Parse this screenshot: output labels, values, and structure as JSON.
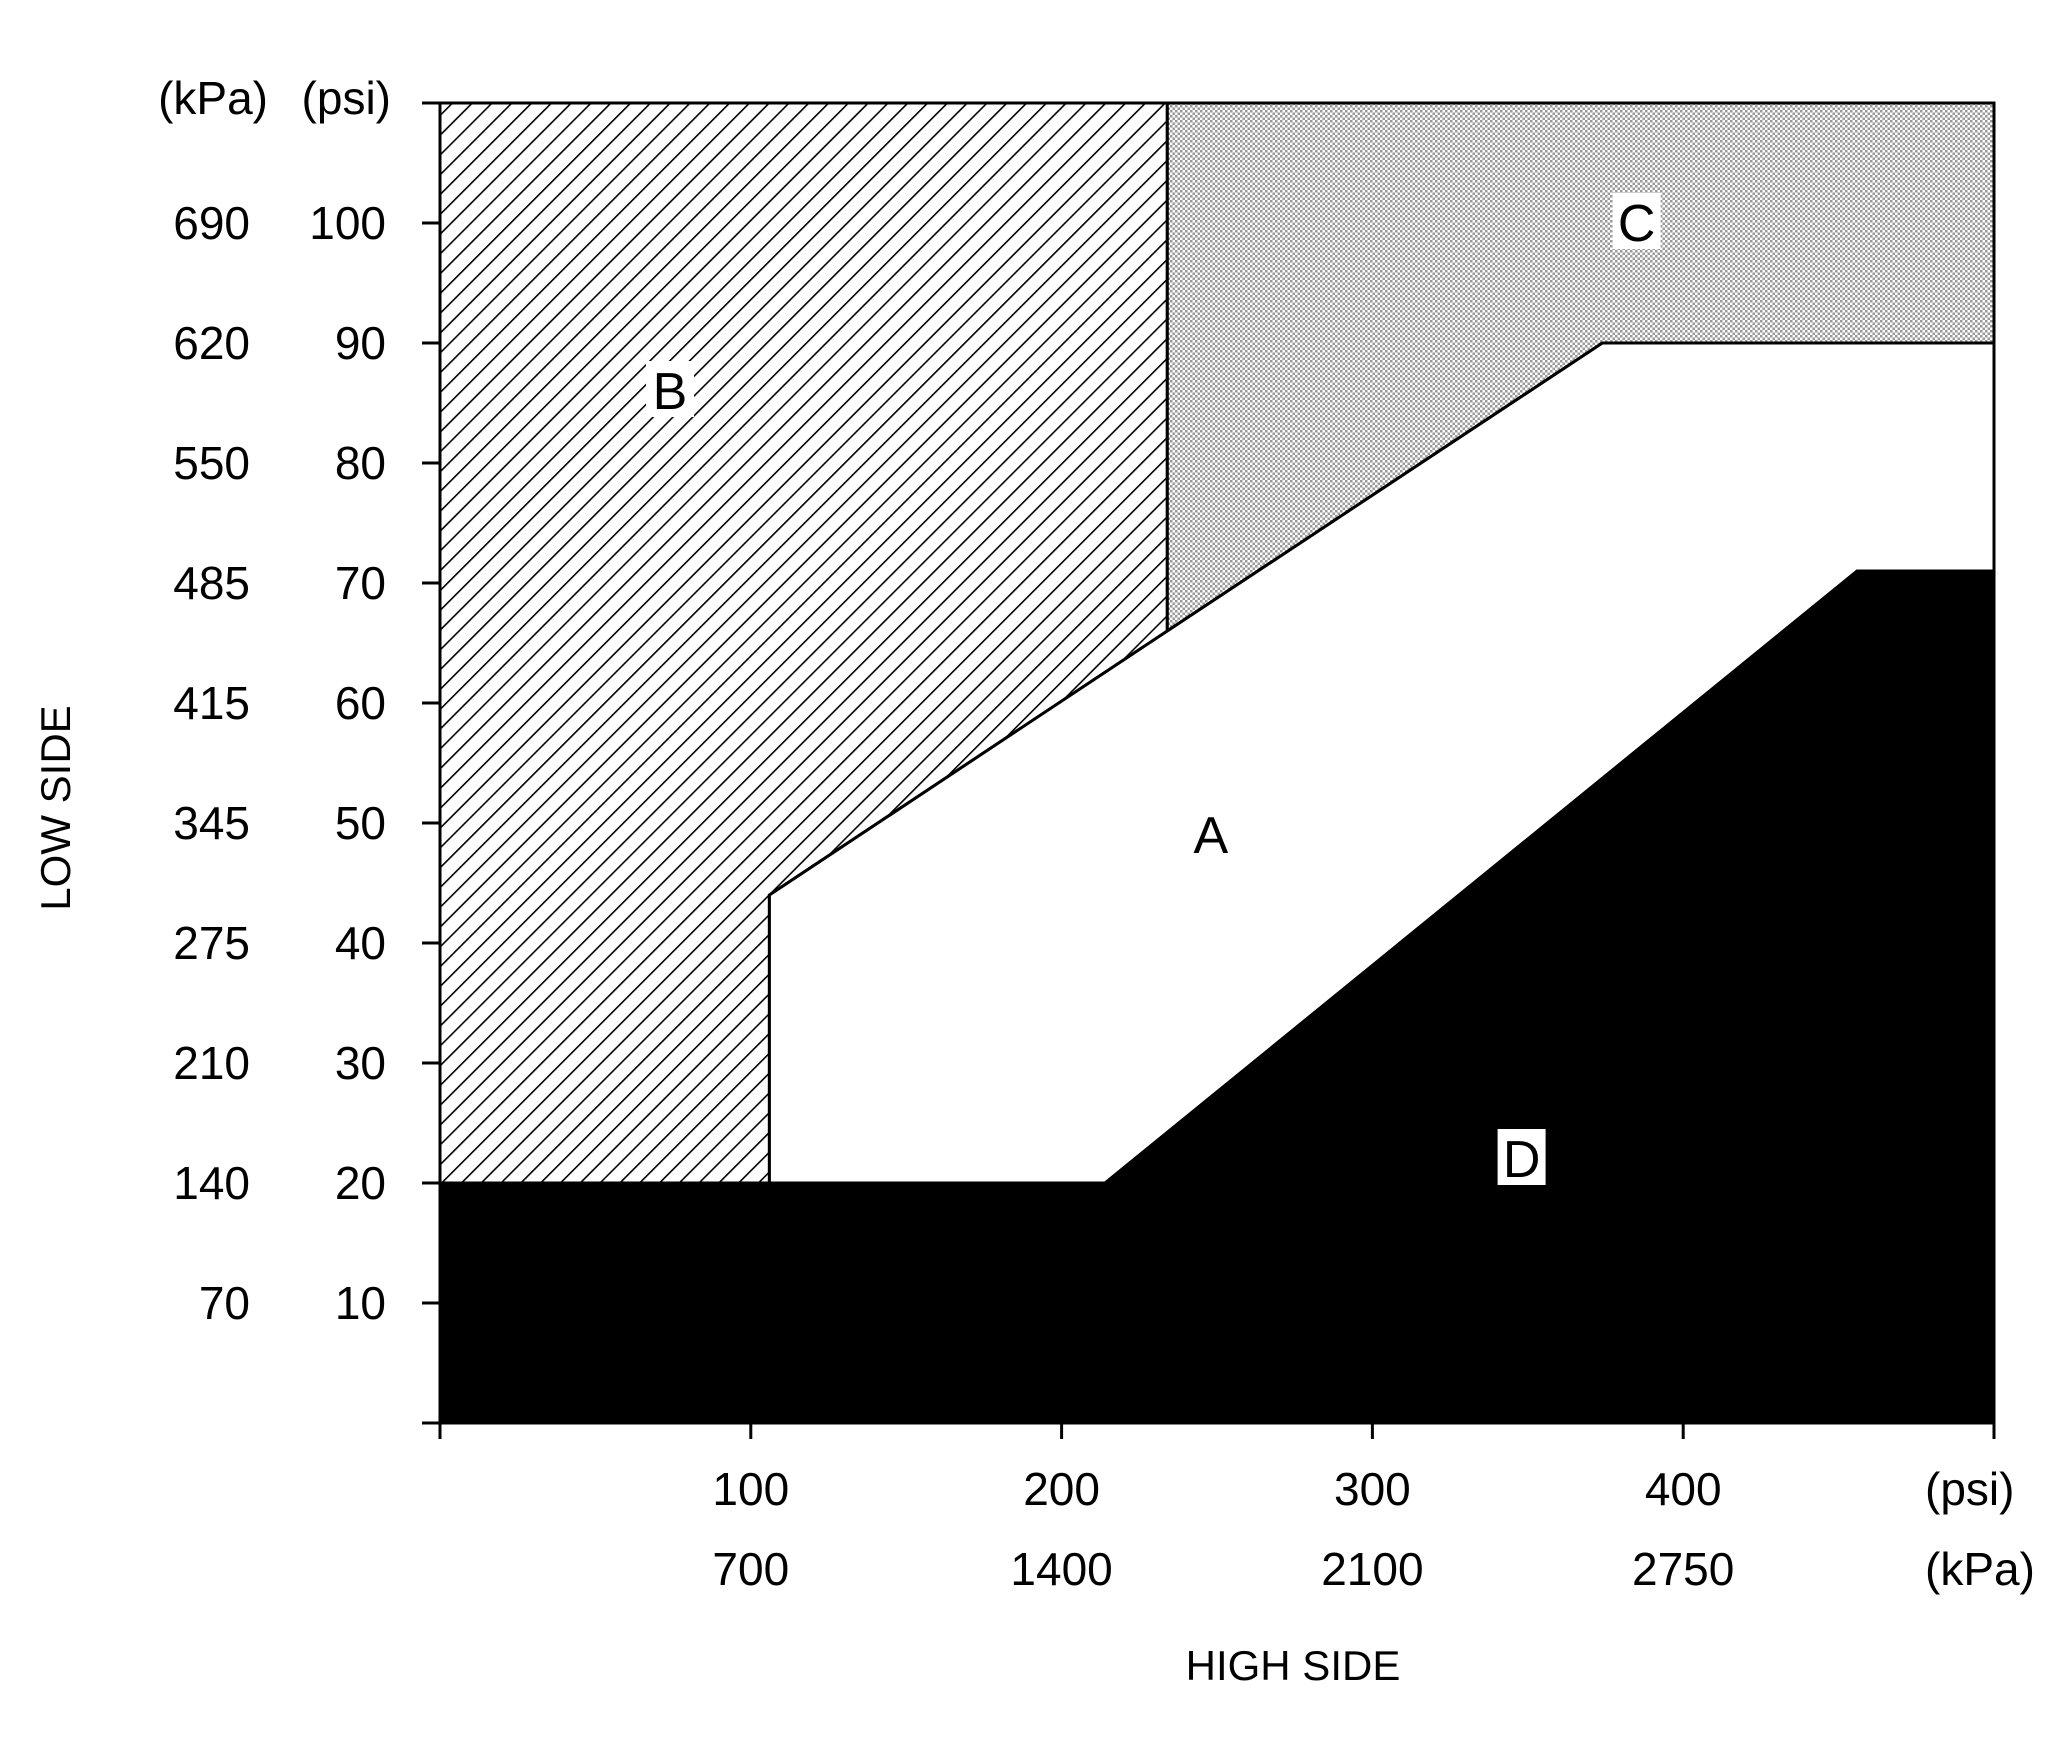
{
  "chart_data": {
    "type": "area",
    "title": "",
    "xlabel": "HIGH SIDE",
    "ylabel": "LOW SIDE",
    "xlim": [
      0,
      500
    ],
    "ylim": [
      0,
      110
    ],
    "grid": false,
    "x_ticks": [
      {
        "psi": "100",
        "kpa": "700",
        "value": 100
      },
      {
        "psi": "200",
        "kpa": "1400",
        "value": 200
      },
      {
        "psi": "300",
        "kpa": "2100",
        "value": 300
      },
      {
        "psi": "400",
        "kpa": "2750",
        "value": 400
      }
    ],
    "x_units": {
      "psi": "(psi)",
      "kpa": "(kPa)"
    },
    "y_ticks": [
      {
        "psi": "10",
        "kpa": "70",
        "value": 10
      },
      {
        "psi": "20",
        "kpa": "140",
        "value": 20
      },
      {
        "psi": "30",
        "kpa": "210",
        "value": 30
      },
      {
        "psi": "40",
        "kpa": "275",
        "value": 40
      },
      {
        "psi": "50",
        "kpa": "345",
        "value": 50
      },
      {
        "psi": "60",
        "kpa": "415",
        "value": 60
      },
      {
        "psi": "70",
        "kpa": "485",
        "value": 70
      },
      {
        "psi": "80",
        "kpa": "550",
        "value": 80
      },
      {
        "psi": "90",
        "kpa": "620",
        "value": 90
      },
      {
        "psi": "100",
        "kpa": "690",
        "value": 100
      }
    ],
    "y_units": {
      "kpa": "(kPa)",
      "psi": "(psi)"
    },
    "regions": [
      {
        "name": "B",
        "fill": "hatch",
        "polygon": [
          [
            0,
            20
          ],
          [
            0,
            110
          ],
          [
            234,
            110
          ],
          [
            234,
            66
          ],
          [
            106,
            44
          ],
          [
            106,
            20
          ]
        ],
        "label_at": [
          74,
          86
        ]
      },
      {
        "name": "C",
        "fill": "dots",
        "polygon": [
          [
            234,
            110
          ],
          [
            500,
            110
          ],
          [
            500,
            90
          ],
          [
            374,
            90
          ],
          [
            234,
            66
          ]
        ],
        "label_at": [
          385,
          100
        ]
      },
      {
        "name": "A",
        "fill": "white",
        "polygon": [
          [
            106,
            20
          ],
          [
            106,
            44
          ],
          [
            234,
            66
          ],
          [
            374,
            90
          ],
          [
            500,
            90
          ],
          [
            500,
            71
          ],
          [
            456,
            71
          ],
          [
            214,
            20
          ]
        ],
        "label_at": [
          248,
          49
        ]
      },
      {
        "name": "D",
        "fill": "black",
        "polygon": [
          [
            0,
            0
          ],
          [
            0,
            20
          ],
          [
            214,
            20
          ],
          [
            456,
            71
          ],
          [
            500,
            71
          ],
          [
            500,
            0
          ]
        ],
        "label_at": [
          348,
          22
        ]
      }
    ]
  }
}
